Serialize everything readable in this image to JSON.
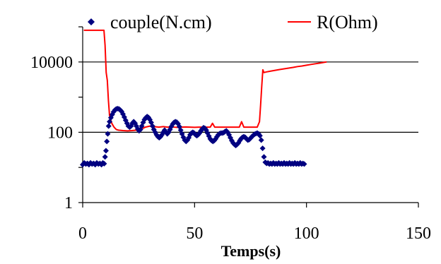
{
  "chart_data": {
    "type": "line",
    "xlabel": "Temps(s)",
    "ylabel": "",
    "xlim": [
      0,
      150
    ],
    "ylim": [
      1,
      100000
    ],
    "yscale": "log",
    "x_ticks": [
      0,
      50,
      100,
      150
    ],
    "y_ticks": [
      1,
      100,
      10000
    ],
    "x_tick_labels": [
      "0",
      "50",
      "100",
      "150"
    ],
    "y_tick_labels": [
      "1",
      "100",
      "10000"
    ],
    "grid": "horizontal",
    "legend": "top",
    "series": [
      {
        "name": "couple(N.cm)",
        "style": "markers",
        "color": "#000080",
        "points": [
          [
            0,
            12
          ],
          [
            0.7,
            13.5
          ],
          [
            1.4,
            12.5
          ],
          [
            2.1,
            13
          ],
          [
            2.8,
            12
          ],
          [
            3.5,
            13.5
          ],
          [
            4.2,
            12.5
          ],
          [
            4.9,
            13
          ],
          [
            5.6,
            12
          ],
          [
            6.3,
            13.5
          ],
          [
            7,
            12.5
          ],
          [
            7.7,
            13
          ],
          [
            8.4,
            12
          ],
          [
            9,
            13.5
          ],
          [
            9.6,
            12.8
          ],
          [
            10,
            20
          ],
          [
            10.4,
            30
          ],
          [
            10.8,
            55
          ],
          [
            11.2,
            90
          ],
          [
            11.6,
            150
          ],
          [
            12,
            200
          ],
          [
            12.6,
            260
          ],
          [
            13.2,
            320
          ],
          [
            13.8,
            380
          ],
          [
            14.4,
            430
          ],
          [
            15,
            460
          ],
          [
            15.6,
            470
          ],
          [
            16.2,
            460
          ],
          [
            16.8,
            430
          ],
          [
            17.4,
            390
          ],
          [
            18,
            330
          ],
          [
            18.6,
            270
          ],
          [
            19.2,
            220
          ],
          [
            19.8,
            180
          ],
          [
            20.4,
            150
          ],
          [
            21,
            140
          ],
          [
            21.6,
            150
          ],
          [
            22.2,
            180
          ],
          [
            22.8,
            200
          ],
          [
            23.4,
            180
          ],
          [
            24,
            150
          ],
          [
            24.6,
            125
          ],
          [
            25.2,
            110
          ],
          [
            25.8,
            120
          ],
          [
            26.4,
            150
          ],
          [
            27,
            190
          ],
          [
            27.6,
            230
          ],
          [
            28.2,
            260
          ],
          [
            28.8,
            280
          ],
          [
            29.4,
            265
          ],
          [
            30,
            230
          ],
          [
            30.6,
            190
          ],
          [
            31.2,
            150
          ],
          [
            31.8,
            120
          ],
          [
            32.4,
            100
          ],
          [
            33,
            85
          ],
          [
            33.6,
            75
          ],
          [
            34.2,
            70
          ],
          [
            34.8,
            75
          ],
          [
            35.4,
            85
          ],
          [
            36,
            100
          ],
          [
            36.6,
            115
          ],
          [
            37.2,
            100
          ],
          [
            37.8,
            90
          ],
          [
            38.4,
            100
          ],
          [
            39,
            120
          ],
          [
            39.6,
            145
          ],
          [
            40.2,
            170
          ],
          [
            40.8,
            190
          ],
          [
            41.4,
            200
          ],
          [
            42,
            195
          ],
          [
            42.6,
            175
          ],
          [
            43.2,
            145
          ],
          [
            43.8,
            115
          ],
          [
            44.4,
            90
          ],
          [
            45,
            72
          ],
          [
            45.6,
            60
          ],
          [
            46.2,
            55
          ],
          [
            46.8,
            60
          ],
          [
            47.4,
            70
          ],
          [
            48,
            85
          ],
          [
            48.6,
            95
          ],
          [
            49.2,
            100
          ],
          [
            49.8,
            95
          ],
          [
            50.4,
            85
          ],
          [
            51,
            80
          ],
          [
            51.6,
            85
          ],
          [
            52.2,
            95
          ],
          [
            52.8,
            110
          ],
          [
            53.4,
            125
          ],
          [
            54,
            135
          ],
          [
            54.6,
            130
          ],
          [
            55.2,
            115
          ],
          [
            55.8,
            95
          ],
          [
            56.4,
            78
          ],
          [
            57,
            65
          ],
          [
            57.6,
            58
          ],
          [
            58.2,
            55
          ],
          [
            58.8,
            58
          ],
          [
            59.4,
            65
          ],
          [
            60,
            75
          ],
          [
            60.6,
            85
          ],
          [
            61.2,
            92
          ],
          [
            61.8,
            95
          ],
          [
            62.4,
            95
          ],
          [
            63,
            98
          ],
          [
            63.6,
            105
          ],
          [
            64.2,
            110
          ],
          [
            64.8,
            100
          ],
          [
            65.4,
            85
          ],
          [
            66,
            70
          ],
          [
            66.6,
            58
          ],
          [
            67.2,
            50
          ],
          [
            67.8,
            45
          ],
          [
            68.4,
            42
          ],
          [
            69,
            45
          ],
          [
            69.6,
            50
          ],
          [
            70.2,
            58
          ],
          [
            70.8,
            66
          ],
          [
            71.4,
            72
          ],
          [
            72,
            75
          ],
          [
            72.6,
            72
          ],
          [
            73.2,
            65
          ],
          [
            73.8,
            60
          ],
          [
            74.4,
            62
          ],
          [
            75,
            68
          ],
          [
            75.6,
            75
          ],
          [
            76.2,
            82
          ],
          [
            76.8,
            88
          ],
          [
            77.4,
            92
          ],
          [
            78,
            95
          ],
          [
            78.6,
            90
          ],
          [
            79.2,
            80
          ],
          [
            79.8,
            60
          ],
          [
            80.4,
            35
          ],
          [
            81,
            20
          ],
          [
            81.6,
            14
          ],
          [
            82.2,
            13
          ],
          [
            82.8,
            13.5
          ],
          [
            83.4,
            12.5
          ],
          [
            84,
            13
          ],
          [
            84.6,
            12.5
          ],
          [
            85.2,
            13.5
          ],
          [
            85.8,
            12.5
          ],
          [
            86.4,
            13
          ],
          [
            87,
            12.5
          ],
          [
            87.6,
            13.5
          ],
          [
            88.2,
            12.5
          ],
          [
            88.8,
            13
          ],
          [
            89.4,
            12.5
          ],
          [
            90,
            13.5
          ],
          [
            90.6,
            12.5
          ],
          [
            91.2,
            13
          ],
          [
            91.8,
            12.5
          ],
          [
            92.4,
            13.5
          ],
          [
            93,
            12.5
          ],
          [
            93.6,
            13
          ],
          [
            94.2,
            12.5
          ],
          [
            94.8,
            13.5
          ],
          [
            95.4,
            12.5
          ],
          [
            96,
            13
          ],
          [
            96.6,
            12.5
          ],
          [
            97.2,
            13.5
          ],
          [
            97.8,
            12.5
          ],
          [
            98.4,
            13
          ],
          [
            99,
            12.5
          ]
        ]
      },
      {
        "name": "R(Ohm)",
        "style": "line",
        "color": "#ff0000",
        "points": [
          [
            0.5,
            80000
          ],
          [
            2,
            80000
          ],
          [
            4,
            80000
          ],
          [
            6,
            80000
          ],
          [
            8,
            80000
          ],
          [
            9.5,
            80000
          ],
          [
            10,
            30000
          ],
          [
            10.5,
            5000
          ],
          [
            11,
            3000
          ],
          [
            11.5,
            800
          ],
          [
            12,
            300
          ],
          [
            13,
            180
          ],
          [
            14,
            140
          ],
          [
            15,
            120
          ],
          [
            16,
            115
          ],
          [
            18,
            112
          ],
          [
            20,
            110
          ],
          [
            22,
            112
          ],
          [
            24,
            115
          ],
          [
            25,
            120
          ],
          [
            26,
            140
          ],
          [
            27,
            130
          ],
          [
            28,
            140
          ],
          [
            30,
            150
          ],
          [
            32,
            145
          ],
          [
            34,
            140
          ],
          [
            36,
            145
          ],
          [
            38,
            140
          ],
          [
            40,
            142
          ],
          [
            42,
            138
          ],
          [
            44,
            140
          ],
          [
            46,
            142
          ],
          [
            48,
            140
          ],
          [
            50,
            138
          ],
          [
            52,
            140
          ],
          [
            54,
            140
          ],
          [
            56,
            140
          ],
          [
            57,
            140
          ],
          [
            58,
            180
          ],
          [
            59,
            140
          ],
          [
            60,
            140
          ],
          [
            62,
            140
          ],
          [
            64,
            140
          ],
          [
            66,
            140
          ],
          [
            68,
            140
          ],
          [
            70,
            140
          ],
          [
            71,
            200
          ],
          [
            72,
            140
          ],
          [
            73,
            140
          ],
          [
            74,
            140
          ],
          [
            76,
            140
          ],
          [
            78,
            140
          ],
          [
            79,
            200
          ],
          [
            79.5,
            600
          ],
          [
            80,
            2000
          ],
          [
            80.5,
            6000
          ],
          [
            81,
            5000
          ],
          [
            82,
            5200
          ],
          [
            84,
            5500
          ],
          [
            86,
            5800
          ],
          [
            88,
            6100
          ],
          [
            90,
            6400
          ],
          [
            92,
            6700
          ],
          [
            94,
            7000
          ],
          [
            96,
            7400
          ],
          [
            98,
            7700
          ],
          [
            100,
            8100
          ],
          [
            102,
            8500
          ],
          [
            104,
            8900
          ],
          [
            106,
            9300
          ],
          [
            108,
            9800
          ],
          [
            109,
            10000
          ]
        ]
      }
    ]
  }
}
